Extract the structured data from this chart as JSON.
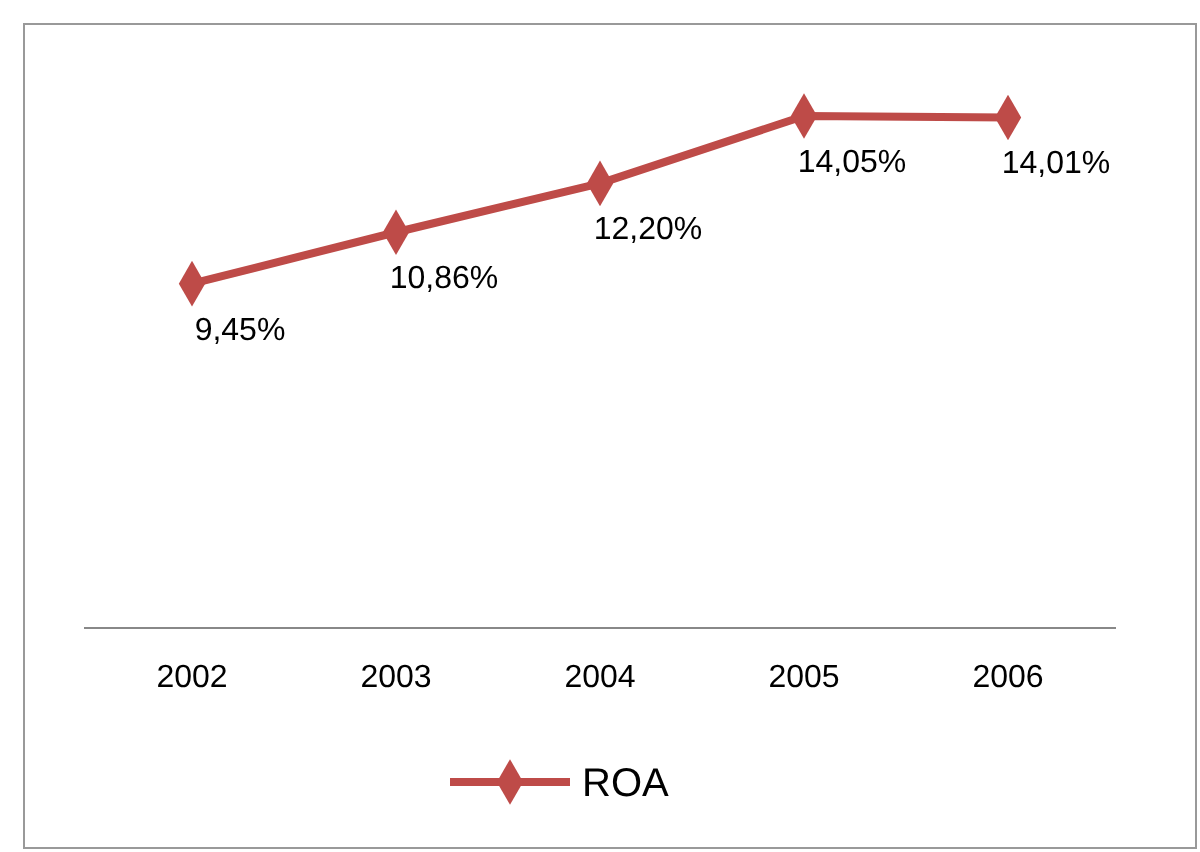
{
  "chart_data": {
    "type": "line",
    "categories": [
      "2002",
      "2003",
      "2004",
      "2005",
      "2006"
    ],
    "series": [
      {
        "name": "ROA",
        "color": "#be4b48",
        "values": [
          9.45,
          10.86,
          12.2,
          14.05,
          14.01
        ],
        "value_labels": [
          "9,45%",
          "10,86%",
          "12,20%",
          "14,05%",
          "14,01%"
        ]
      }
    ],
    "tick_labels": "x",
    "marker": "diamond",
    "legend": "bottom"
  }
}
